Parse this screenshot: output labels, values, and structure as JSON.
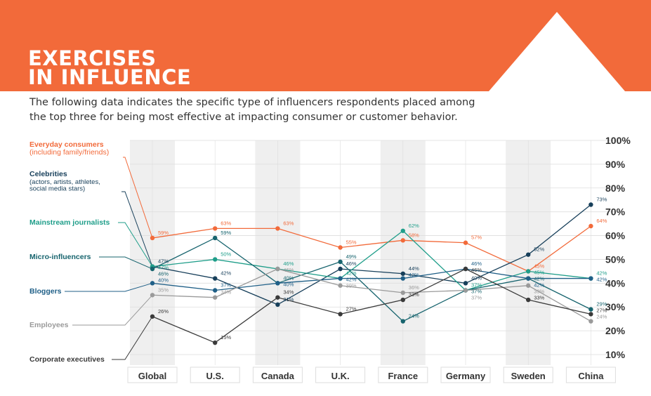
{
  "page": {
    "title_line1": "EXERCISES",
    "title_line2": "IN INFLUENCE",
    "subtitle": "The following data indicates the specific type of influencers respondents placed among the top three for being most effective at impacting consumer or customer behavior."
  },
  "colors": {
    "header": "#f26a3a",
    "band": "#efefef",
    "grid": "#dddddd"
  },
  "chart_data": {
    "type": "line",
    "categories": [
      "Global",
      "U.S.",
      "Canada",
      "U.K.",
      "France",
      "Germany",
      "Sweden",
      "China"
    ],
    "ylim": [
      10,
      100
    ],
    "yticks": [
      "100%",
      "90%",
      "80%",
      "70%",
      "60%",
      "50%",
      "40%",
      "30%",
      "20%",
      "10%"
    ],
    "grid": true,
    "legend_placement": "left",
    "series": [
      {
        "name": "Everyday consumers",
        "sub": [
          "(including family/friends)"
        ],
        "color": "#f26a3a",
        "values": [
          59,
          63,
          63,
          55,
          58,
          57,
          45,
          64
        ]
      },
      {
        "name": "Celebrities",
        "sub": [
          "(actors, artists, athletes,",
          "social media stars)"
        ],
        "color": "#173f5a",
        "values": [
          47,
          42,
          31,
          46,
          44,
          40,
          52,
          73
        ]
      },
      {
        "name": "Mainstream journalists",
        "sub": [],
        "color": "#1f9e8a",
        "values": [
          47,
          50,
          46,
          42,
          62,
          37,
          45,
          42
        ]
      },
      {
        "name": "Micro-influencers",
        "sub": [],
        "color": "#17646e",
        "values": [
          46,
          59,
          40,
          49,
          24,
          37,
          42,
          29
        ]
      },
      {
        "name": "Bloggers",
        "sub": [],
        "color": "#1f5f87",
        "values": [
          40,
          37,
          40,
          42,
          42,
          46,
          42,
          42
        ]
      },
      {
        "name": "Employees",
        "sub": [],
        "color": "#9a9a9a",
        "values": [
          35,
          34,
          46,
          39,
          36,
          37,
          39,
          24
        ]
      },
      {
        "name": "Corporate executives",
        "sub": [],
        "color": "#3a3a3a",
        "values": [
          26,
          15,
          34,
          27,
          33,
          46,
          33,
          27
        ]
      }
    ]
  }
}
